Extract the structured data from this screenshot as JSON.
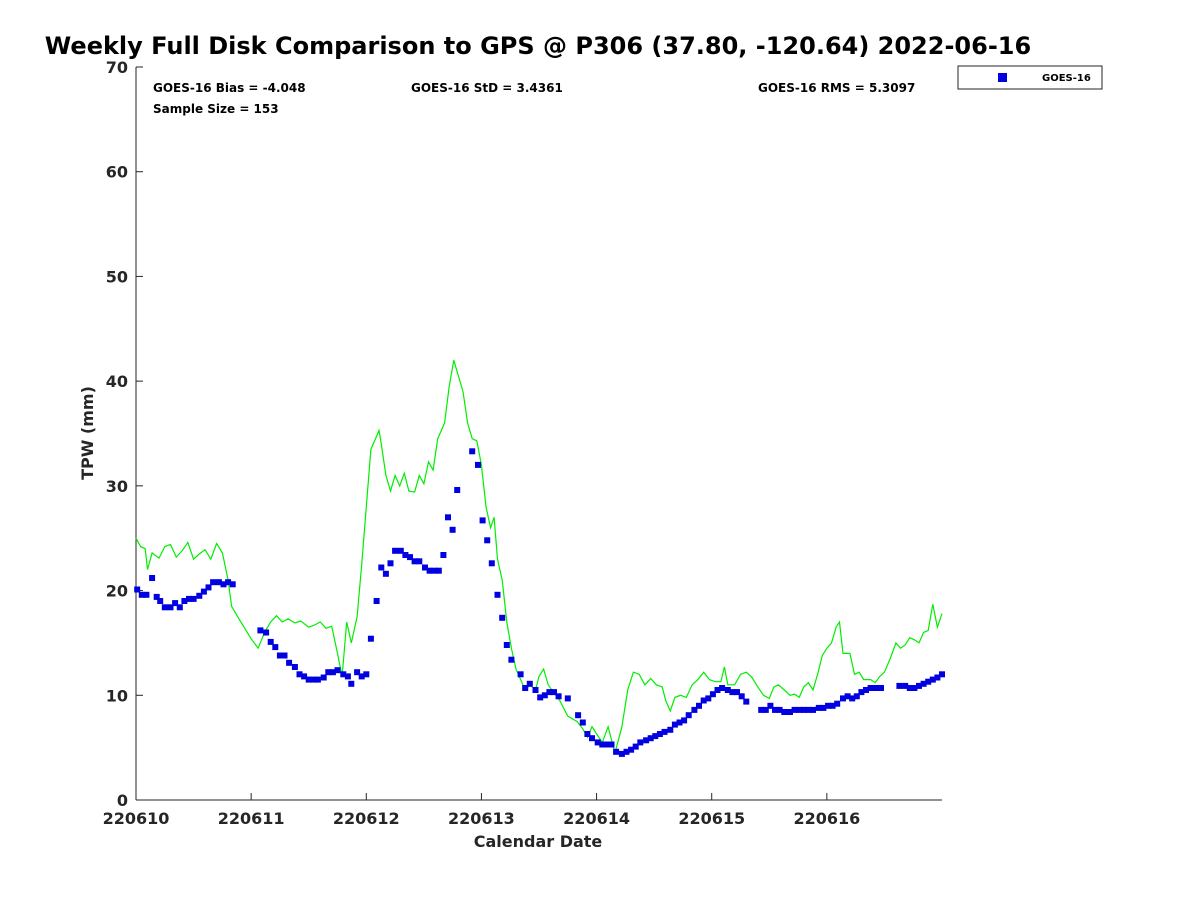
{
  "title": "Weekly Full Disk Comparison to GPS @ P306 (37.80, -120.64) 2022-06-16",
  "stats": {
    "bias": "GOES-16 Bias = -4.048",
    "std": "GOES-16 StD = 3.4361",
    "rms": "GOES-16 RMS = 5.3097",
    "sample": "Sample Size = 153"
  },
  "legend": {
    "label": "GOES-16"
  },
  "colors": {
    "goes": "#0000e0",
    "gps": "#00ee00",
    "axis": "#262626"
  },
  "chart_data": {
    "type": "scatter",
    "xlabel": "Calendar Date",
    "ylabel": "TPW (mm)",
    "xlim": [
      0,
      7
    ],
    "ylim": [
      0,
      70
    ],
    "x_ticks": [
      {
        "value": 0,
        "label": "220610"
      },
      {
        "value": 1,
        "label": "220611"
      },
      {
        "value": 2,
        "label": "220612"
      },
      {
        "value": 3,
        "label": "220613"
      },
      {
        "value": 4,
        "label": "220614"
      },
      {
        "value": 5,
        "label": "220615"
      },
      {
        "value": 6,
        "label": "220616"
      }
    ],
    "y_ticks": [
      0,
      10,
      20,
      30,
      40,
      50,
      60,
      70
    ],
    "series": [
      {
        "name": "GOES-16",
        "kind": "markers",
        "points": [
          [
            0.01,
            20.1
          ],
          [
            0.05,
            19.6
          ],
          [
            0.09,
            19.6
          ],
          [
            0.14,
            21.2
          ],
          [
            0.18,
            19.4
          ],
          [
            0.21,
            19.0
          ],
          [
            0.25,
            18.4
          ],
          [
            0.3,
            18.4
          ],
          [
            0.34,
            18.8
          ],
          [
            0.38,
            18.4
          ],
          [
            0.42,
            19.0
          ],
          [
            0.46,
            19.2
          ],
          [
            0.5,
            19.2
          ],
          [
            0.55,
            19.5
          ],
          [
            0.59,
            19.9
          ],
          [
            0.63,
            20.3
          ],
          [
            0.67,
            20.8
          ],
          [
            0.72,
            20.8
          ],
          [
            0.76,
            20.6
          ],
          [
            0.8,
            20.8
          ],
          [
            0.84,
            20.6
          ],
          [
            1.08,
            16.2
          ],
          [
            1.13,
            16.0
          ],
          [
            1.17,
            15.1
          ],
          [
            1.21,
            14.6
          ],
          [
            1.25,
            13.8
          ],
          [
            1.29,
            13.8
          ],
          [
            1.33,
            13.1
          ],
          [
            1.38,
            12.7
          ],
          [
            1.42,
            12.0
          ],
          [
            1.46,
            11.8
          ],
          [
            1.5,
            11.5
          ],
          [
            1.54,
            11.5
          ],
          [
            1.58,
            11.5
          ],
          [
            1.63,
            11.7
          ],
          [
            1.67,
            12.2
          ],
          [
            1.71,
            12.2
          ],
          [
            1.75,
            12.4
          ],
          [
            1.8,
            12.0
          ],
          [
            1.84,
            11.8
          ],
          [
            1.87,
            11.1
          ],
          [
            1.92,
            12.2
          ],
          [
            1.96,
            11.8
          ],
          [
            2.0,
            12.0
          ],
          [
            2.04,
            15.4
          ],
          [
            2.09,
            19.0
          ],
          [
            2.13,
            22.2
          ],
          [
            2.17,
            21.6
          ],
          [
            2.21,
            22.6
          ],
          [
            2.25,
            23.8
          ],
          [
            2.3,
            23.8
          ],
          [
            2.34,
            23.4
          ],
          [
            2.38,
            23.2
          ],
          [
            2.42,
            22.8
          ],
          [
            2.46,
            22.8
          ],
          [
            2.51,
            22.2
          ],
          [
            2.55,
            21.9
          ],
          [
            2.59,
            21.9
          ],
          [
            2.63,
            21.9
          ],
          [
            2.67,
            23.4
          ],
          [
            2.71,
            27.0
          ],
          [
            2.75,
            25.8
          ],
          [
            2.79,
            29.6
          ],
          [
            2.92,
            33.3
          ],
          [
            2.97,
            32.0
          ],
          [
            3.01,
            26.7
          ],
          [
            3.05,
            24.8
          ],
          [
            3.09,
            22.6
          ],
          [
            3.14,
            19.6
          ],
          [
            3.18,
            17.4
          ],
          [
            3.22,
            14.8
          ],
          [
            3.26,
            13.4
          ],
          [
            3.34,
            12.0
          ],
          [
            3.38,
            10.7
          ],
          [
            3.42,
            11.1
          ],
          [
            3.47,
            10.5
          ],
          [
            3.51,
            9.8
          ],
          [
            3.55,
            10.0
          ],
          [
            3.59,
            10.3
          ],
          [
            3.63,
            10.3
          ],
          [
            3.67,
            9.9
          ],
          [
            3.75,
            9.7
          ],
          [
            3.84,
            8.1
          ],
          [
            3.88,
            7.4
          ],
          [
            3.92,
            6.3
          ],
          [
            3.96,
            5.9
          ],
          [
            4.01,
            5.5
          ],
          [
            4.05,
            5.3
          ],
          [
            4.09,
            5.3
          ],
          [
            4.13,
            5.3
          ],
          [
            4.17,
            4.6
          ],
          [
            4.22,
            4.4
          ],
          [
            4.26,
            4.6
          ],
          [
            4.3,
            4.8
          ],
          [
            4.34,
            5.1
          ],
          [
            4.38,
            5.5
          ],
          [
            4.43,
            5.7
          ],
          [
            4.47,
            5.9
          ],
          [
            4.51,
            6.1
          ],
          [
            4.55,
            6.3
          ],
          [
            4.59,
            6.5
          ],
          [
            4.64,
            6.7
          ],
          [
            4.68,
            7.2
          ],
          [
            4.72,
            7.4
          ],
          [
            4.76,
            7.6
          ],
          [
            4.8,
            8.1
          ],
          [
            4.85,
            8.6
          ],
          [
            4.89,
            9.0
          ],
          [
            4.93,
            9.5
          ],
          [
            4.97,
            9.7
          ],
          [
            5.01,
            10.1
          ],
          [
            5.05,
            10.5
          ],
          [
            5.09,
            10.7
          ],
          [
            5.14,
            10.5
          ],
          [
            5.18,
            10.3
          ],
          [
            5.22,
            10.3
          ],
          [
            5.26,
            9.9
          ],
          [
            5.3,
            9.4
          ],
          [
            5.43,
            8.6
          ],
          [
            5.47,
            8.6
          ],
          [
            5.51,
            9.0
          ],
          [
            5.55,
            8.6
          ],
          [
            5.59,
            8.6
          ],
          [
            5.63,
            8.4
          ],
          [
            5.68,
            8.4
          ],
          [
            5.72,
            8.6
          ],
          [
            5.76,
            8.6
          ],
          [
            5.8,
            8.6
          ],
          [
            5.84,
            8.6
          ],
          [
            5.88,
            8.6
          ],
          [
            5.93,
            8.8
          ],
          [
            5.97,
            8.8
          ],
          [
            6.01,
            9.0
          ],
          [
            6.05,
            9.0
          ],
          [
            6.09,
            9.2
          ],
          [
            6.14,
            9.7
          ],
          [
            6.18,
            9.9
          ],
          [
            6.22,
            9.7
          ],
          [
            6.26,
            9.9
          ],
          [
            6.3,
            10.3
          ],
          [
            6.34,
            10.5
          ],
          [
            6.38,
            10.7
          ],
          [
            6.43,
            10.7
          ],
          [
            6.47,
            10.7
          ],
          [
            6.63,
            10.9
          ],
          [
            6.68,
            10.9
          ],
          [
            6.72,
            10.7
          ],
          [
            6.76,
            10.7
          ],
          [
            6.8,
            10.9
          ],
          [
            6.84,
            11.1
          ],
          [
            6.88,
            11.3
          ],
          [
            6.92,
            11.5
          ],
          [
            6.96,
            11.7
          ],
          [
            7.0,
            12.0
          ]
        ]
      },
      {
        "kind": "line",
        "points": [
          [
            0.0,
            25.0
          ],
          [
            0.04,
            24.2
          ],
          [
            0.08,
            24.0
          ],
          [
            0.1,
            22.0
          ],
          [
            0.14,
            23.6
          ],
          [
            0.2,
            23.1
          ],
          [
            0.25,
            24.2
          ],
          [
            0.3,
            24.4
          ],
          [
            0.35,
            23.2
          ],
          [
            0.4,
            23.8
          ],
          [
            0.45,
            24.6
          ],
          [
            0.5,
            23.0
          ],
          [
            0.55,
            23.5
          ],
          [
            0.6,
            23.9
          ],
          [
            0.65,
            23.0
          ],
          [
            0.7,
            24.5
          ],
          [
            0.75,
            23.6
          ],
          [
            0.8,
            21.0
          ],
          [
            0.83,
            18.5
          ],
          [
            0.9,
            17.2
          ],
          [
            1.0,
            15.4
          ],
          [
            1.06,
            14.5
          ],
          [
            1.12,
            16.1
          ],
          [
            1.17,
            17.0
          ],
          [
            1.22,
            17.6
          ],
          [
            1.27,
            17.0
          ],
          [
            1.32,
            17.3
          ],
          [
            1.38,
            16.9
          ],
          [
            1.43,
            17.1
          ],
          [
            1.5,
            16.5
          ],
          [
            1.55,
            16.7
          ],
          [
            1.6,
            17.0
          ],
          [
            1.65,
            16.4
          ],
          [
            1.7,
            16.6
          ],
          [
            1.75,
            14.0
          ],
          [
            1.79,
            11.8
          ],
          [
            1.83,
            17.0
          ],
          [
            1.87,
            15.0
          ],
          [
            1.92,
            17.5
          ],
          [
            1.96,
            22.5
          ],
          [
            2.0,
            28.0
          ],
          [
            2.04,
            33.5
          ],
          [
            2.08,
            34.5
          ],
          [
            2.11,
            35.3
          ],
          [
            2.13,
            34.0
          ],
          [
            2.17,
            31.0
          ],
          [
            2.21,
            29.5
          ],
          [
            2.25,
            31.0
          ],
          [
            2.29,
            30.0
          ],
          [
            2.33,
            31.2
          ],
          [
            2.37,
            29.5
          ],
          [
            2.42,
            29.4
          ],
          [
            2.46,
            31.0
          ],
          [
            2.5,
            30.2
          ],
          [
            2.54,
            32.3
          ],
          [
            2.58,
            31.5
          ],
          [
            2.62,
            34.5
          ],
          [
            2.68,
            36.0
          ],
          [
            2.72,
            39.5
          ],
          [
            2.76,
            42.0
          ],
          [
            2.8,
            40.5
          ],
          [
            2.84,
            39.0
          ],
          [
            2.88,
            36.0
          ],
          [
            2.92,
            34.5
          ],
          [
            2.96,
            34.3
          ],
          [
            3.0,
            32.0
          ],
          [
            3.04,
            28.0
          ],
          [
            3.08,
            26.0
          ],
          [
            3.11,
            27.0
          ],
          [
            3.14,
            23.0
          ],
          [
            3.18,
            21.0
          ],
          [
            3.22,
            17.0
          ],
          [
            3.26,
            14.5
          ],
          [
            3.3,
            12.5
          ],
          [
            3.34,
            11.5
          ],
          [
            3.38,
            10.5
          ],
          [
            3.42,
            11.0
          ],
          [
            3.47,
            10.5
          ],
          [
            3.5,
            11.8
          ],
          [
            3.54,
            12.5
          ],
          [
            3.58,
            11.0
          ],
          [
            3.63,
            10.2
          ],
          [
            3.68,
            9.5
          ],
          [
            3.75,
            8.0
          ],
          [
            3.83,
            7.5
          ],
          [
            3.88,
            6.8
          ],
          [
            3.92,
            6.0
          ],
          [
            3.96,
            7.0
          ],
          [
            4.0,
            6.3
          ],
          [
            4.05,
            5.5
          ],
          [
            4.1,
            7.0
          ],
          [
            4.16,
            4.5
          ],
          [
            4.22,
            7.0
          ],
          [
            4.27,
            10.5
          ],
          [
            4.32,
            12.2
          ],
          [
            4.37,
            12.0
          ],
          [
            4.42,
            11.0
          ],
          [
            4.47,
            11.6
          ],
          [
            4.52,
            11.0
          ],
          [
            4.57,
            10.8
          ],
          [
            4.6,
            9.5
          ],
          [
            4.64,
            8.5
          ],
          [
            4.68,
            9.8
          ],
          [
            4.73,
            10.0
          ],
          [
            4.78,
            9.8
          ],
          [
            4.83,
            11.0
          ],
          [
            4.88,
            11.5
          ],
          [
            4.93,
            12.2
          ],
          [
            4.98,
            11.5
          ],
          [
            5.03,
            11.3
          ],
          [
            5.08,
            11.3
          ],
          [
            5.11,
            12.7
          ],
          [
            5.14,
            11.0
          ],
          [
            5.2,
            11.0
          ],
          [
            5.25,
            12.0
          ],
          [
            5.3,
            12.2
          ],
          [
            5.35,
            11.7
          ],
          [
            5.4,
            10.8
          ],
          [
            5.45,
            10.0
          ],
          [
            5.5,
            9.7
          ],
          [
            5.54,
            10.8
          ],
          [
            5.58,
            11.0
          ],
          [
            5.63,
            10.5
          ],
          [
            5.68,
            10.0
          ],
          [
            5.72,
            10.1
          ],
          [
            5.76,
            9.8
          ],
          [
            5.8,
            10.8
          ],
          [
            5.84,
            11.2
          ],
          [
            5.88,
            10.5
          ],
          [
            5.92,
            12.0
          ],
          [
            5.96,
            13.8
          ],
          [
            6.0,
            14.5
          ],
          [
            6.04,
            15.0
          ],
          [
            6.08,
            16.5
          ],
          [
            6.11,
            17.0
          ],
          [
            6.14,
            14.0
          ],
          [
            6.2,
            14.0
          ],
          [
            6.24,
            12.0
          ],
          [
            6.28,
            12.2
          ],
          [
            6.32,
            11.5
          ],
          [
            6.38,
            11.5
          ],
          [
            6.42,
            11.2
          ],
          [
            6.46,
            11.8
          ],
          [
            6.5,
            12.2
          ],
          [
            6.55,
            13.5
          ],
          [
            6.6,
            15.0
          ],
          [
            6.64,
            14.5
          ],
          [
            6.68,
            14.8
          ],
          [
            6.72,
            15.5
          ],
          [
            6.76,
            15.3
          ],
          [
            6.8,
            15.0
          ],
          [
            6.84,
            16.0
          ],
          [
            6.88,
            16.2
          ],
          [
            6.92,
            18.7
          ],
          [
            6.96,
            16.5
          ],
          [
            7.0,
            17.8
          ]
        ]
      }
    ]
  }
}
